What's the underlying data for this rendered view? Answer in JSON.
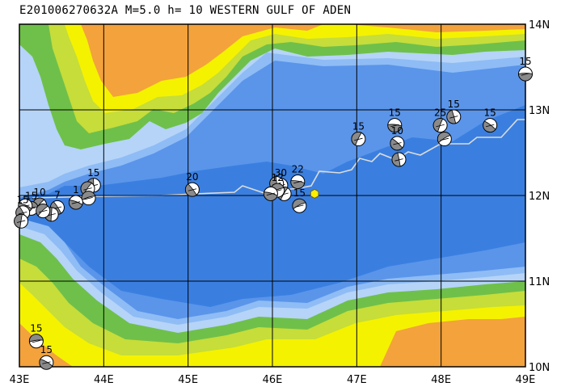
{
  "title": "E201006270632A M=5.0 h= 10 WESTERN GULF OF ADEN",
  "colors": {
    "deep_water": "#3a7fe0",
    "mid_water": "#5a95ea",
    "shallow_water": "#8fbcf5",
    "coastal_water": "#b5d4f8",
    "lowland": "#6fc04a",
    "hills": "#c6dd3a",
    "plateau": "#f5f200",
    "highland": "#f3a23c",
    "grid": "#000000",
    "ridge": "#dcdcdc",
    "epicenter": "#ffee00"
  },
  "longitude_labels": [
    "43E",
    "44E",
    "45E",
    "46E",
    "47E",
    "48E",
    "49E"
  ],
  "latitude_labels": [
    "14N",
    "13N",
    "12N",
    "11N",
    "10N"
  ],
  "epicenter": {
    "lon": 46.5,
    "lat": 12.02,
    "icon": "hexagon-epicenter-icon"
  },
  "mechanisms": [
    {
      "lon": 49.0,
      "lat": 13.42,
      "depth_label": "15",
      "icon": "beachball-icon"
    },
    {
      "lon": 48.58,
      "lat": 12.82,
      "depth_label": "15",
      "icon": "beachball-icon"
    },
    {
      "lon": 48.15,
      "lat": 12.92,
      "depth_label": "15",
      "icon": "beachball-icon"
    },
    {
      "lon": 47.99,
      "lat": 12.82,
      "depth_label": "25",
      "icon": "beachball-icon"
    },
    {
      "lon": 48.04,
      "lat": 12.66,
      "depth_label": "",
      "icon": "beachball-icon"
    },
    {
      "lon": 47.45,
      "lat": 12.82,
      "depth_label": "15",
      "icon": "beachball-icon"
    },
    {
      "lon": 47.48,
      "lat": 12.61,
      "depth_label": "10",
      "icon": "beachball-icon"
    },
    {
      "lon": 47.5,
      "lat": 12.42,
      "depth_label": "",
      "icon": "beachball-icon"
    },
    {
      "lon": 47.02,
      "lat": 12.66,
      "depth_label": "15",
      "icon": "beachball-icon"
    },
    {
      "lon": 46.32,
      "lat": 11.88,
      "depth_label": "15",
      "icon": "beachball-icon"
    },
    {
      "lon": 46.3,
      "lat": 12.16,
      "depth_label": "22",
      "icon": "beachball-icon"
    },
    {
      "lon": 46.1,
      "lat": 12.12,
      "depth_label": "30",
      "icon": "beachball-icon"
    },
    {
      "lon": 46.05,
      "lat": 12.14,
      "depth_label": "",
      "icon": "beachball-icon"
    },
    {
      "lon": 46.14,
      "lat": 12.02,
      "depth_label": "",
      "icon": "beachball-icon"
    },
    {
      "lon": 46.06,
      "lat": 12.06,
      "depth_label": "12",
      "icon": "beachball-icon"
    },
    {
      "lon": 45.98,
      "lat": 12.02,
      "depth_label": "",
      "icon": "beachball-icon"
    },
    {
      "lon": 45.05,
      "lat": 12.07,
      "depth_label": "20",
      "icon": "beachball-icon"
    },
    {
      "lon": 43.88,
      "lat": 12.12,
      "depth_label": "15",
      "icon": "beachball-icon"
    },
    {
      "lon": 43.81,
      "lat": 12.08,
      "depth_label": "",
      "icon": "beachball-icon"
    },
    {
      "lon": 43.82,
      "lat": 11.97,
      "depth_label": "",
      "icon": "beachball-icon"
    },
    {
      "lon": 43.67,
      "lat": 11.92,
      "depth_label": "1",
      "icon": "beachball-icon"
    },
    {
      "lon": 43.45,
      "lat": 11.86,
      "depth_label": "7",
      "icon": "beachball-icon"
    },
    {
      "lon": 43.38,
      "lat": 11.78,
      "depth_label": "",
      "icon": "beachball-icon"
    },
    {
      "lon": 43.24,
      "lat": 11.89,
      "depth_label": "10",
      "icon": "beachball-icon"
    },
    {
      "lon": 43.14,
      "lat": 11.85,
      "depth_label": "15",
      "icon": "beachball-icon"
    },
    {
      "lon": 43.07,
      "lat": 11.88,
      "depth_label": "",
      "icon": "beachball-icon"
    },
    {
      "lon": 43.04,
      "lat": 11.8,
      "depth_label": "15",
      "icon": "beachball-icon"
    },
    {
      "lon": 43.02,
      "lat": 11.7,
      "depth_label": "",
      "icon": "beachball-icon"
    },
    {
      "lon": 43.28,
      "lat": 11.82,
      "depth_label": "",
      "icon": "beachball-icon"
    },
    {
      "lon": 43.2,
      "lat": 10.3,
      "depth_label": "15",
      "icon": "beachball-icon"
    },
    {
      "lon": 43.32,
      "lat": 10.05,
      "depth_label": "15",
      "icon": "beachball-icon"
    }
  ]
}
